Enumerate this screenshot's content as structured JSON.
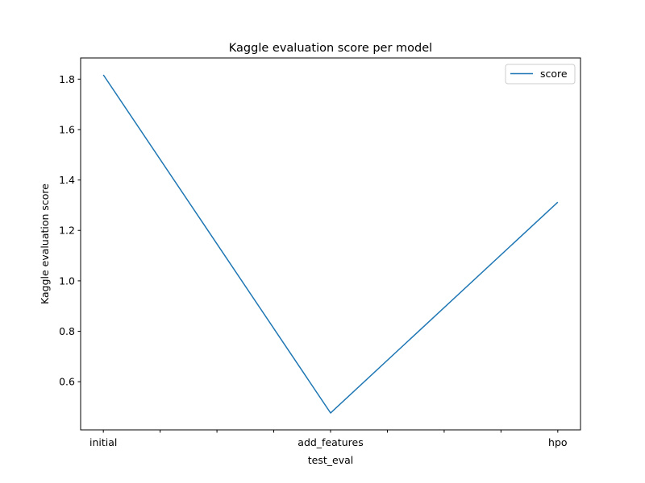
{
  "chart_data": {
    "type": "line",
    "title": "Kaggle evaluation score per model",
    "xlabel": "test_eval",
    "ylabel": "Kaggle evaluation score",
    "categories": [
      "initial",
      "add_features",
      "hpo"
    ],
    "series": [
      {
        "name": "score",
        "values": [
          1.817,
          0.476,
          1.312
        ],
        "color": "#1f77b4"
      }
    ],
    "x_range": [
      -0.1,
      2.1
    ],
    "y_range": [
      0.409,
      1.884
    ],
    "y_ticks": [
      0.6,
      0.8,
      1.0,
      1.2,
      1.4,
      1.6,
      1.8
    ],
    "y_tick_labels": [
      "0.6",
      "0.8",
      "1.0",
      "1.2",
      "1.4",
      "1.6",
      "1.8"
    ],
    "x_ticks": [
      0,
      1,
      2
    ],
    "x_minor_ticks": [
      0.25,
      0.5,
      0.75,
      1.25,
      1.5,
      1.75
    ],
    "grid": false,
    "legend_position": "top-right"
  }
}
